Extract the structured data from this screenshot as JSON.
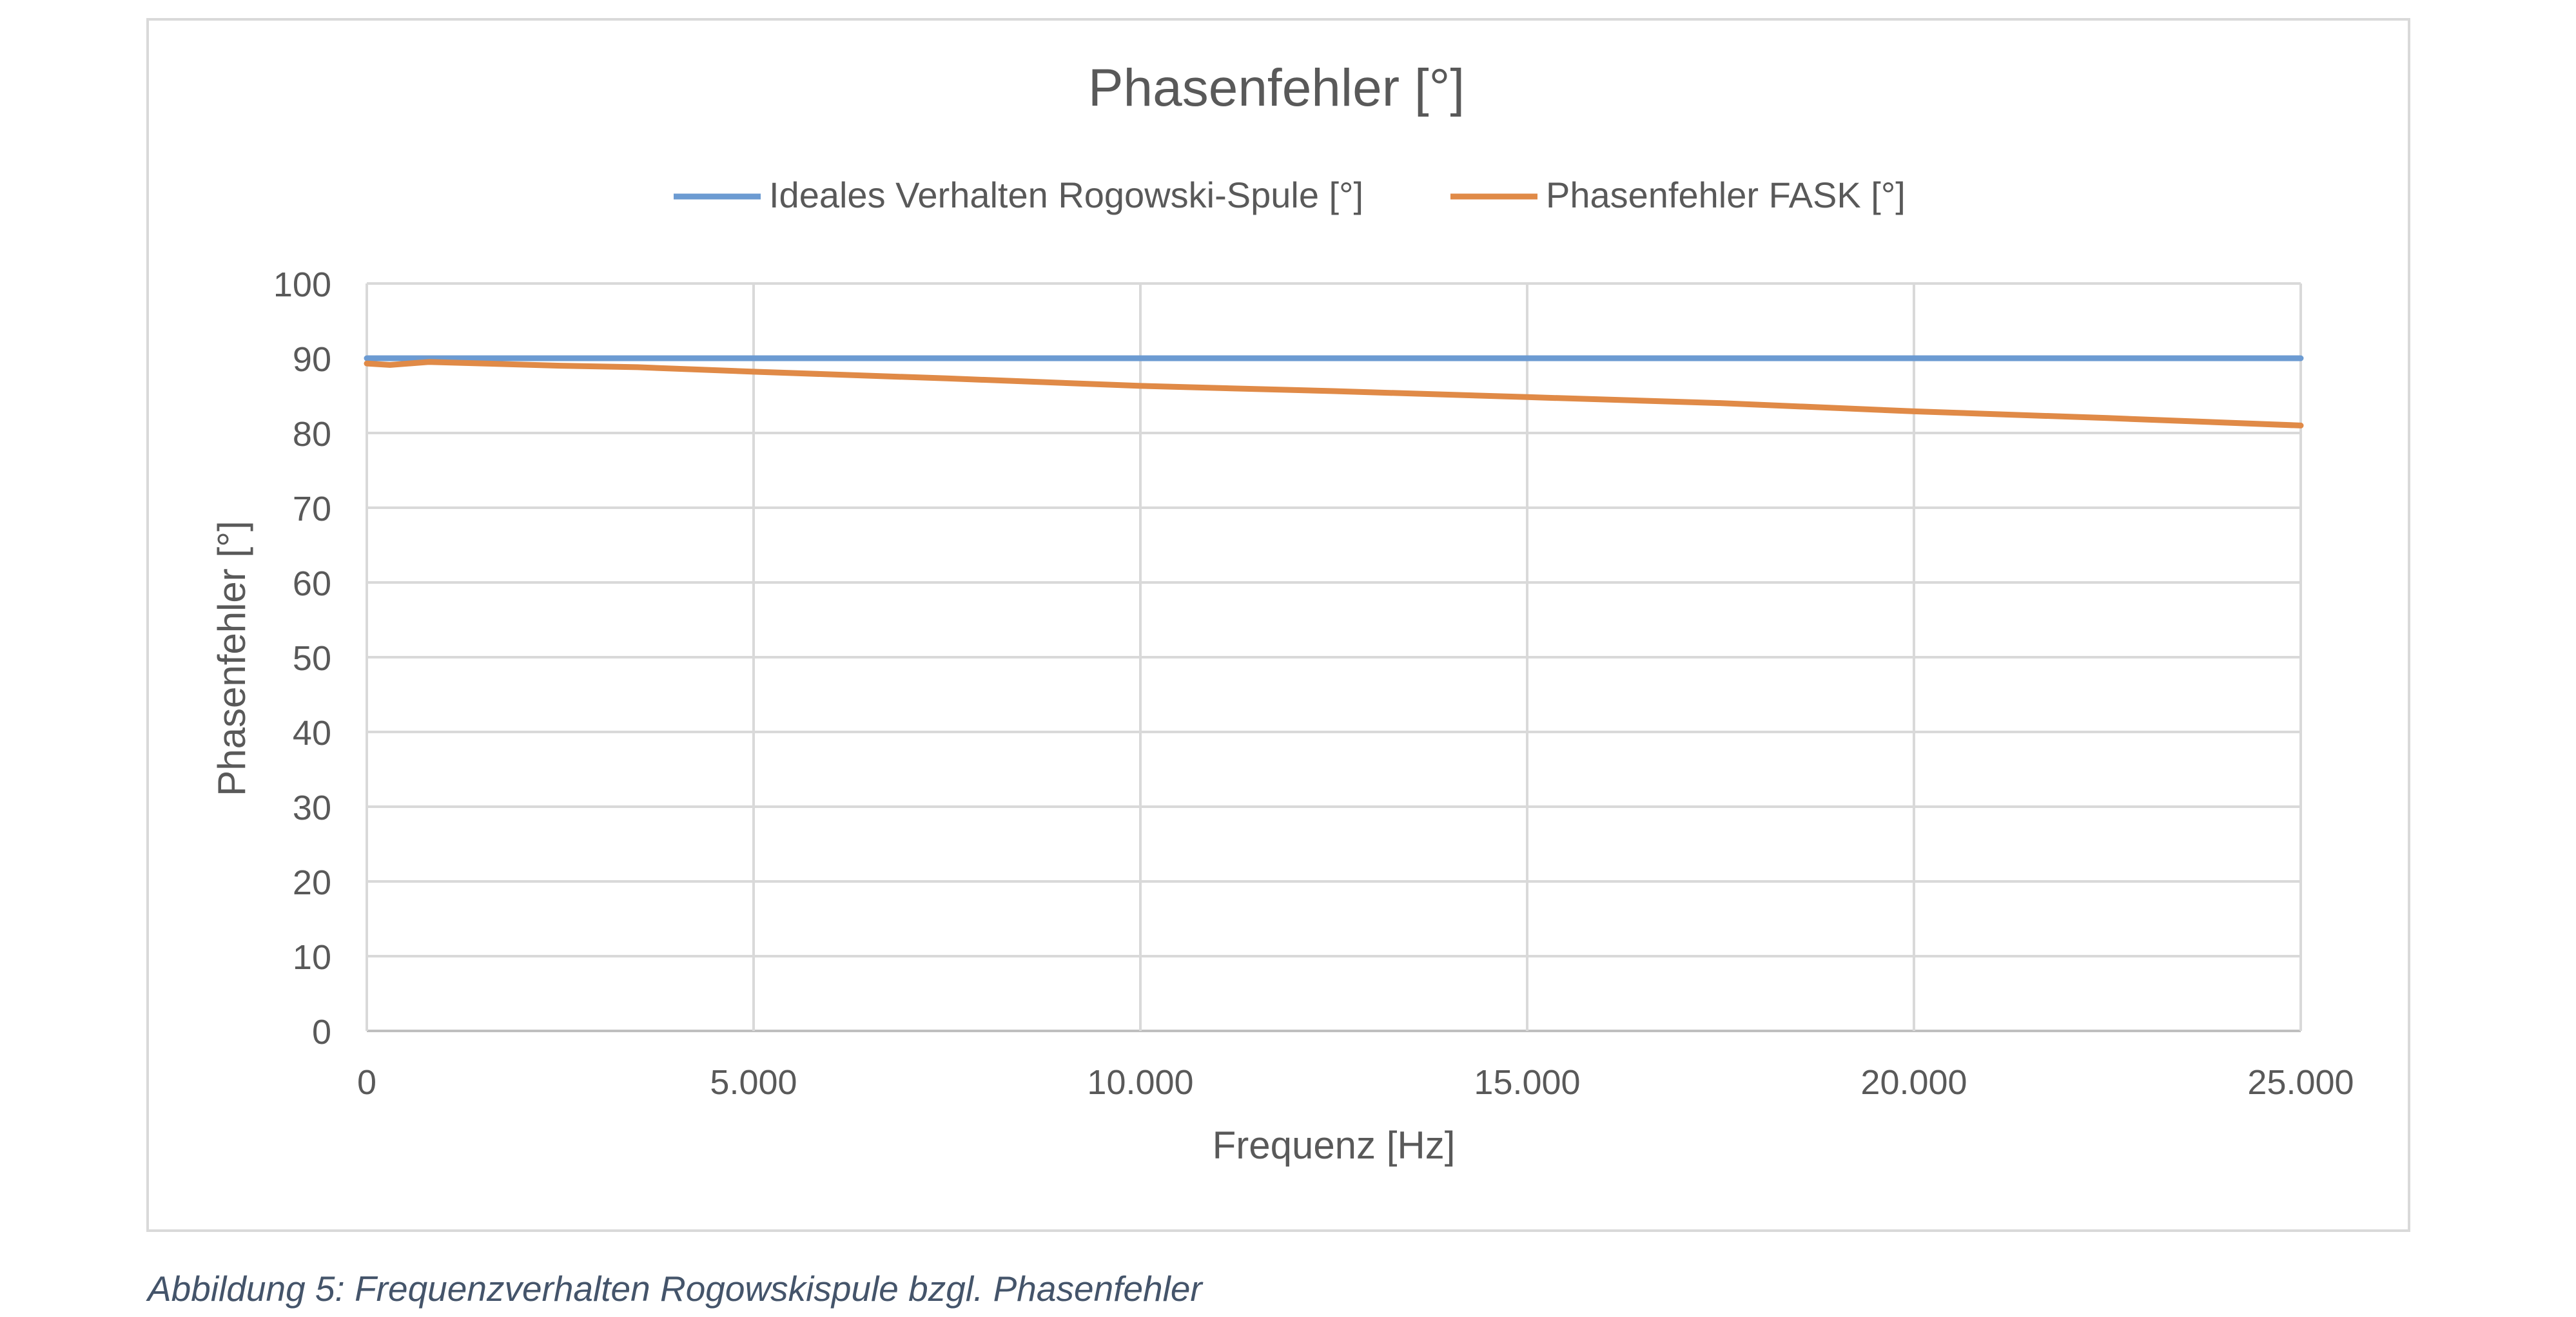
{
  "colors": {
    "ideal": "#6c9bd2",
    "fask": "#e08a47",
    "grid": "#d9d9d9",
    "text": "#595959",
    "frame": "#d9d9d9",
    "caption": "#44546a"
  },
  "chart_data": {
    "type": "line",
    "title": "Phasenfehler [°]",
    "xlabel": "Frequenz [Hz]",
    "ylabel": "Phasenfehler [°]",
    "xlim": [
      0,
      25000
    ],
    "ylim": [
      0,
      100
    ],
    "x_ticks": [
      0,
      5000,
      10000,
      15000,
      20000,
      25000
    ],
    "x_tick_labels": [
      "0",
      "5.000",
      "10.000",
      "15.000",
      "20.000",
      "25.000"
    ],
    "y_ticks": [
      0,
      10,
      20,
      30,
      40,
      50,
      60,
      70,
      80,
      90,
      100
    ],
    "y_tick_labels": [
      "0",
      "10",
      "20",
      "30",
      "40",
      "50",
      "60",
      "70",
      "80",
      "90",
      "100"
    ],
    "grid": true,
    "legend_position": "top",
    "series": [
      {
        "name": "Ideales Verhalten Rogowski-Spule [°]",
        "x": [
          0,
          25000
        ],
        "y": [
          90,
          90
        ]
      },
      {
        "name": "Phasenfehler FASK [°]",
        "x": [
          0,
          300,
          800,
          1500,
          2500,
          3500,
          5000,
          7500,
          10000,
          12500,
          15000,
          17500,
          20000,
          22500,
          25000
        ],
        "y": [
          89.3,
          89.1,
          89.5,
          89.3,
          89.0,
          88.8,
          88.2,
          87.3,
          86.3,
          85.6,
          84.8,
          84.0,
          82.9,
          82.0,
          81.0
        ]
      }
    ]
  },
  "caption": "Abbildung 5: Frequenzverhalten Rogowskispule bzgl. Phasenfehler"
}
